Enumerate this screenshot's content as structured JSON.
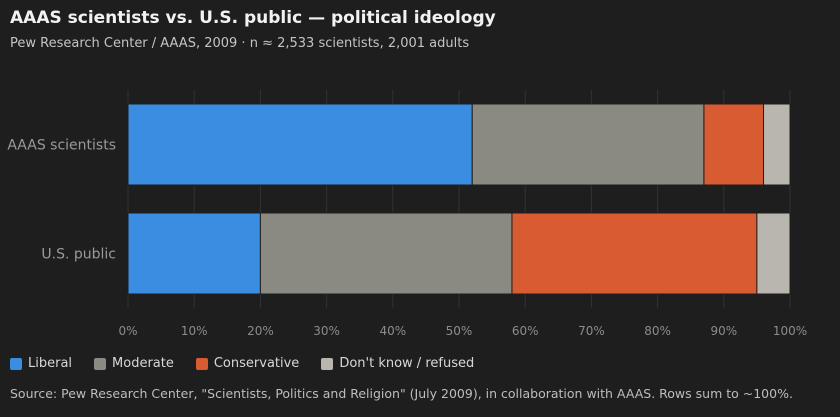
{
  "header": {
    "title": "AAAS scientists vs. U.S. public — political ideology",
    "subtitle": "Pew Research Center / AAAS, 2009 · n ≈ 2,533 scientists, 2,001 adults"
  },
  "source": "Source: Pew Research Center, \"Scientists, Politics and Religion\" (July 2009), in collaboration with AAAS. Rows sum to ~100%.",
  "chart_data": {
    "type": "bar",
    "orientation": "horizontal",
    "stacked": true,
    "categories": [
      "AAAS scientists",
      "U.S. public"
    ],
    "series": [
      {
        "name": "Liberal",
        "values": [
          52,
          20
        ],
        "color": "#3a8de0"
      },
      {
        "name": "Moderate",
        "values": [
          35,
          38
        ],
        "color": "#8a8a83"
      },
      {
        "name": "Conservative",
        "values": [
          9,
          37
        ],
        "color": "#d95b32"
      },
      {
        "name": "Don't know / refused",
        "values": [
          4,
          5
        ],
        "color": "#b8b6ae"
      }
    ],
    "xlim": [
      0,
      100
    ],
    "x_ticks": [
      "0%",
      "10%",
      "20%",
      "30%",
      "40%",
      "50%",
      "60%",
      "70%",
      "80%",
      "90%",
      "100%"
    ],
    "grid": true,
    "legend_position": "bottom-left"
  }
}
